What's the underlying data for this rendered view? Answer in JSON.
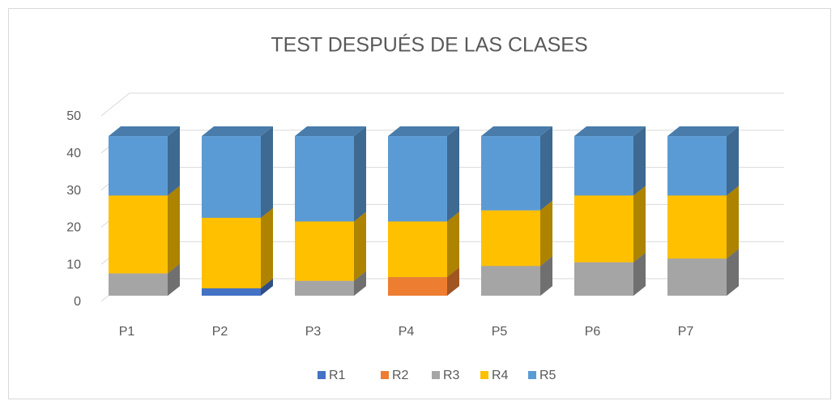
{
  "chart_data": {
    "type": "bar3d_stacked",
    "title": "TEST DESPUÉS DE LAS CLASES",
    "categories": [
      "P1",
      "P2",
      "P3",
      "P4",
      "P5",
      "P6",
      "P7"
    ],
    "series": [
      {
        "name": "R1",
        "color": "#4472c4",
        "values": [
          0,
          2,
          0,
          0,
          0,
          0,
          0
        ]
      },
      {
        "name": "R2",
        "color": "#ed7d31",
        "values": [
          0,
          0,
          0,
          5,
          0,
          0,
          0
        ]
      },
      {
        "name": "R3",
        "color": "#a5a5a5",
        "values": [
          6,
          0,
          4,
          0,
          8,
          9,
          10
        ]
      },
      {
        "name": "R4",
        "color": "#ffc000",
        "values": [
          21,
          19,
          16,
          15,
          15,
          18,
          17
        ]
      },
      {
        "name": "R5",
        "color": "#5b9bd5",
        "values": [
          16,
          22,
          23,
          23,
          20,
          16,
          16
        ]
      }
    ],
    "ylim": [
      0,
      50
    ],
    "yticks": [
      0,
      10,
      20,
      30,
      40,
      50
    ],
    "grid": true,
    "legend": "bottom"
  }
}
